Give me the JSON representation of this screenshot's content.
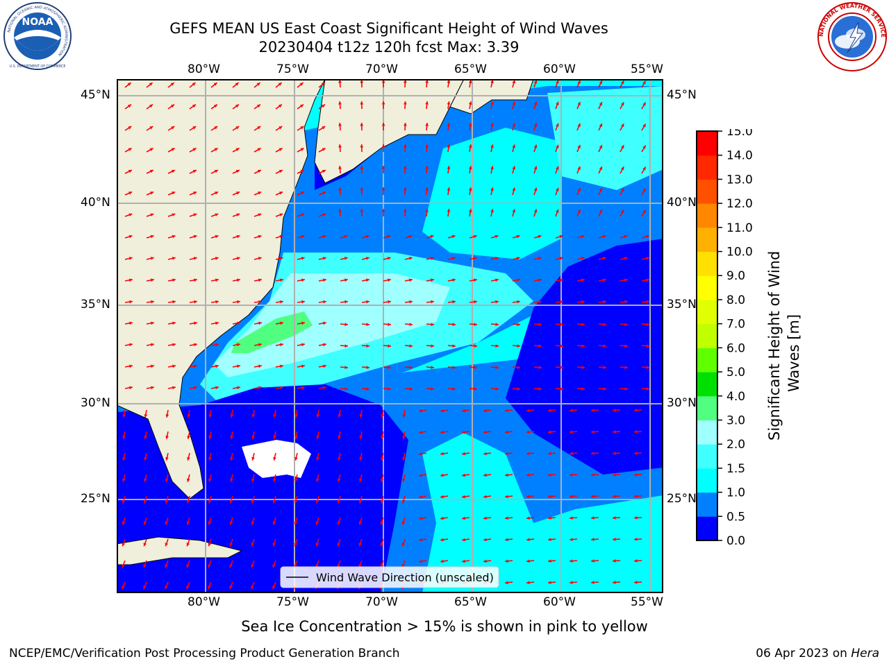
{
  "header": {
    "title_line1": "GEFS MEAN US East Coast Significant Height of Wind Waves",
    "title_line2": "20230404 t12z 120h fcst   Max: 3.39",
    "left_logo": {
      "name": "NOAA",
      "ring_text": "NATIONAL OCEANIC AND ATMOSPHERIC ADMINISTRATION",
      "bottom_text": "U.S. DEPARTMENT OF COMMERCE"
    },
    "right_logo": {
      "ring_text": "NATIONAL WEATHER SERVICE"
    }
  },
  "map": {
    "lon_labels_top": [
      "80°W",
      "75°W",
      "70°W",
      "65°W",
      "60°W",
      "55°W"
    ],
    "lon_labels_bottom": [
      "80°W",
      "75°W",
      "70°W",
      "65°W",
      "60°W",
      "55°W"
    ],
    "lat_labels_left": [
      "45°N",
      "40°N",
      "35°N",
      "30°N",
      "25°N"
    ],
    "lat_labels_right": [
      "45°N",
      "40°N",
      "35°N",
      "30°N",
      "25°N"
    ],
    "legend_label": "Wind Wave Direction (unscaled)",
    "colors": {
      "land": "#efefdc",
      "grid": "#b0b0b0",
      "arrow": "#ff0000"
    }
  },
  "colorbar": {
    "label": "Significant Height of Wind Waves [m]",
    "ticks": [
      "0.0",
      "0.5",
      "1.0",
      "1.5",
      "2.0",
      "3.0",
      "4.0",
      "5.0",
      "6.0",
      "7.0",
      "8.0",
      "9.0",
      "10.0",
      "11.0",
      "12.0",
      "13.0",
      "14.0",
      "15.0"
    ],
    "colors": [
      "#0000ff",
      "#0080ff",
      "#00ffff",
      "#40ffff",
      "#a0ffff",
      "#50ff80",
      "#00e000",
      "#60ff00",
      "#c0ff00",
      "#e0ff00",
      "#ffff00",
      "#ffe000",
      "#ffb000",
      "#ff8800",
      "#ff5000",
      "#ff2800",
      "#ff0000"
    ]
  },
  "caption": "Sea Ice Concentration > 15% is shown in pink to yellow",
  "footer": {
    "left": "NCEP/EMC/Verification Post Processing Product Generation Branch",
    "right_date": "06 Apr 2023 on ",
    "right_machine": "Hera"
  }
}
